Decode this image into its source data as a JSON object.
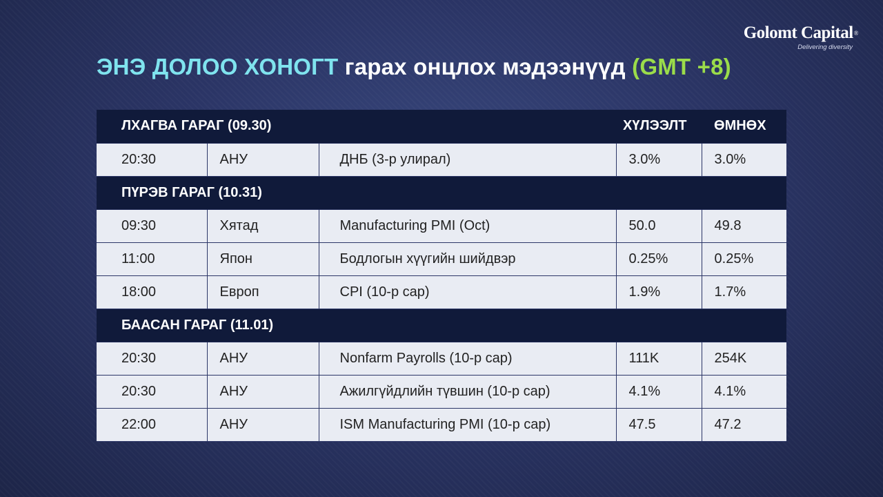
{
  "brand": {
    "name": "Golomt Capital",
    "registered": "®",
    "tagline": "Delivering diversity"
  },
  "title": {
    "part1": "ЭНЭ ДОЛОО ХОНОГТ",
    "part2": "гарах онцлох мэдээнүүд",
    "part3": "(GMT +8)"
  },
  "table": {
    "header_expected": "ХҮЛЭЭЛТ",
    "header_previous": "ӨМНӨХ",
    "days": [
      {
        "label": "ЛХАГВА ГАРАГ (09.30)",
        "events": [
          {
            "time": "20:30",
            "country": "АНУ",
            "event": "ДНБ (3-р улирал)",
            "expected": "3.0%",
            "previous": "3.0%"
          }
        ]
      },
      {
        "label": "ПҮРЭВ ГАРАГ (10.31)",
        "events": [
          {
            "time": "09:30",
            "country": "Хятад",
            "event": "Manufacturing PMI (Oct)",
            "expected": "50.0",
            "previous": "49.8"
          },
          {
            "time": "11:00",
            "country": "Япон",
            "event": "Бодлогын хүүгийн шийдвэр",
            "expected": "0.25%",
            "previous": "0.25%"
          },
          {
            "time": "18:00",
            "country": "Европ",
            "event": "CPI (10-р сар)",
            "expected": "1.9%",
            "previous": "1.7%"
          }
        ]
      },
      {
        "label": "БААСАН ГАРАГ (11.01)",
        "events": [
          {
            "time": "20:30",
            "country": "АНУ",
            "event": "Nonfarm Payrolls (10-р сар)",
            "expected": "111K",
            "previous": "254K"
          },
          {
            "time": "20:30",
            "country": "АНУ",
            "event": "Ажилгүйдлийн түвшин (10-р сар)",
            "expected": "4.1%",
            "previous": "4.1%"
          },
          {
            "time": "22:00",
            "country": "АНУ",
            "event": "ISM Manufacturing PMI (10-р сар)",
            "expected": "47.5",
            "previous": "47.2"
          }
        ]
      }
    ]
  }
}
